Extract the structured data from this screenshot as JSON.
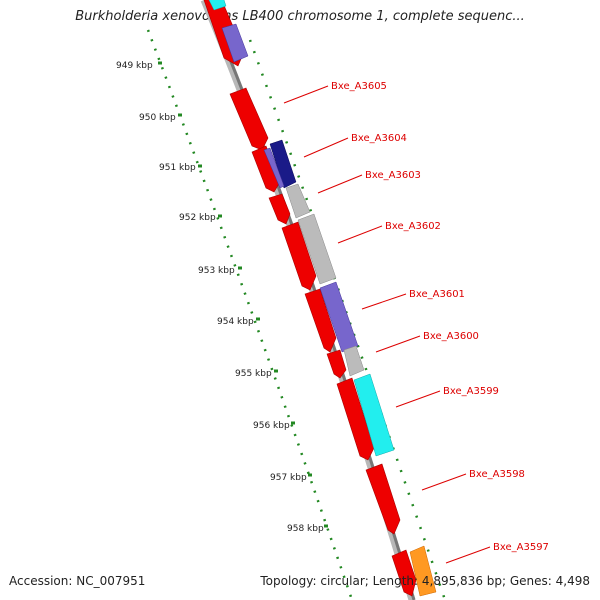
{
  "header": {
    "title": "Burkholderia xenovorans LB400 chromosome 1, complete sequenc..."
  },
  "footer": {
    "accession": "Accession: NC_007951",
    "summary": "Topology: circular; Length: 4,895,836 bp; Genes: 4,498"
  },
  "scale_ticks": [
    "949 kbp",
    "950 kbp",
    "951 kbp",
    "952 kbp",
    "953 kbp",
    "954 kbp",
    "955 kbp",
    "956 kbp",
    "957 kbp",
    "958 kbp"
  ],
  "gene_labels": [
    "Bxe_A3605",
    "Bxe_A3604",
    "Bxe_A3603",
    "Bxe_A3602",
    "Bxe_A3601",
    "Bxe_A3600",
    "Bxe_A3599",
    "Bxe_A3598",
    "Bxe_A3597"
  ],
  "colors": {
    "cds": "#ee0000",
    "cog_blue": "#7766cc",
    "cog_navy": "#1a1a88",
    "cog_gray": "#bbbbbb",
    "cog_cyan": "#22eeee",
    "cog_orange": "#ff9922",
    "backbone": "#888888",
    "ticks": "#228822",
    "label": "#dd0000"
  }
}
